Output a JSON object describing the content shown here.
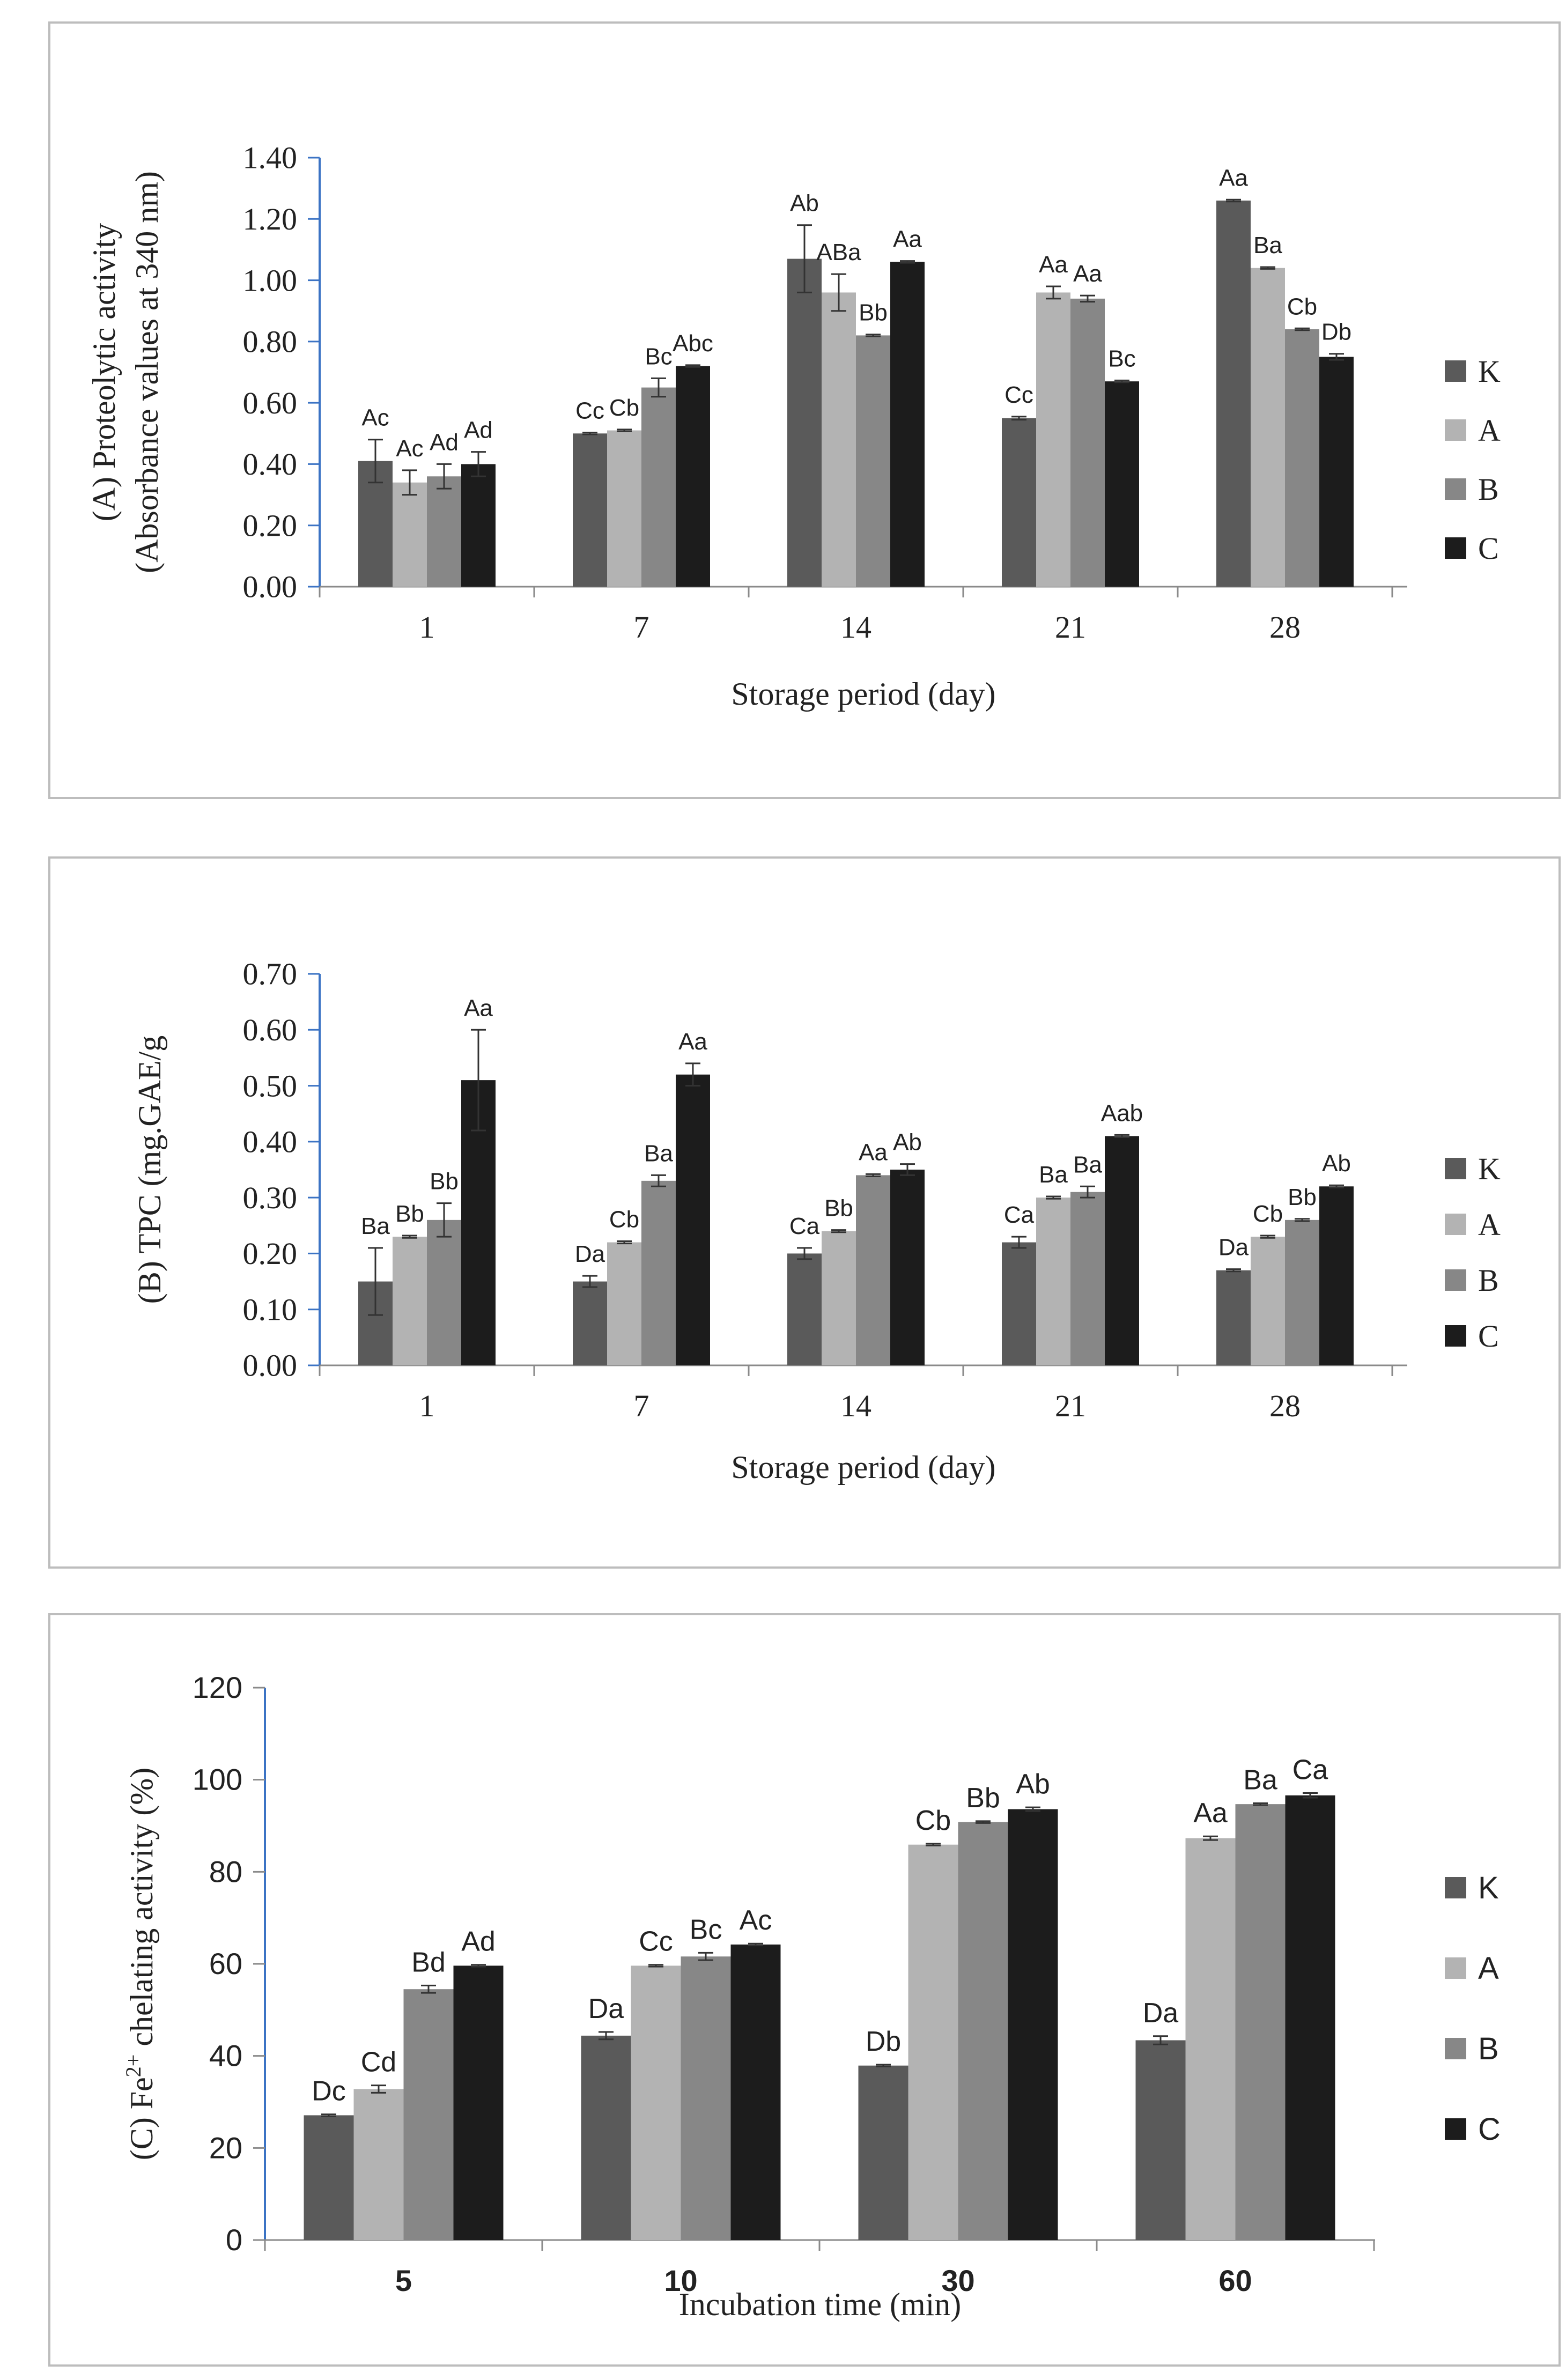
{
  "chart_data": [
    {
      "type": "bar",
      "panel": "A",
      "ylabel_line1": "(A) Proteolytic activity",
      "ylabel_line2": "(Absorbance values at 340 nm)",
      "xlabel": "Storage period (day)",
      "ylim": [
        0,
        1.4
      ],
      "yticks": [
        "0.00",
        "0.20",
        "0.40",
        "0.60",
        "0.80",
        "1.00",
        "1.20",
        "1.40"
      ],
      "categories": [
        "1",
        "7",
        "14",
        "21",
        "28"
      ],
      "legend_position": "right",
      "series": [
        {
          "name": "K",
          "color": "#5a5a5a",
          "values": [
            0.41,
            0.5,
            1.07,
            0.55,
            1.26
          ],
          "errors": [
            0.07,
            0.003,
            0.11,
            0.005,
            0.003
          ],
          "labels": [
            "Ac",
            "Cc",
            "Ab",
            "Cc",
            "Aa"
          ]
        },
        {
          "name": "A",
          "color": "#b3b3b3",
          "values": [
            0.34,
            0.51,
            0.96,
            0.96,
            1.04
          ],
          "errors": [
            0.04,
            0.003,
            0.06,
            0.02,
            0.003
          ],
          "labels": [
            "Ac",
            "Cb",
            "ABa",
            "Aa",
            "Ba"
          ]
        },
        {
          "name": "B",
          "color": "#878787",
          "values": [
            0.36,
            0.65,
            0.82,
            0.94,
            0.84
          ],
          "errors": [
            0.04,
            0.03,
            0.003,
            0.01,
            0.003
          ],
          "labels": [
            "Ad",
            "Bc",
            "Bb",
            "Aa",
            "Cb"
          ]
        },
        {
          "name": "C",
          "color": "#1c1c1c",
          "values": [
            0.4,
            0.72,
            1.06,
            0.67,
            0.75
          ],
          "errors": [
            0.04,
            0.003,
            0.003,
            0.003,
            0.01
          ],
          "labels": [
            "Ad",
            "Abc",
            "Aa",
            "Bc",
            "Db"
          ]
        }
      ]
    },
    {
      "type": "bar",
      "panel": "B",
      "ylabel_line1": "(B) TPC (mg.GAE/g",
      "ylabel_line2": "",
      "xlabel": "Storage period (day)",
      "ylim": [
        0,
        0.7
      ],
      "yticks": [
        "0.00",
        "0.10",
        "0.20",
        "0.30",
        "0.40",
        "0.50",
        "0.60",
        "0.70"
      ],
      "categories": [
        "1",
        "7",
        "14",
        "21",
        "28"
      ],
      "legend_position": "right",
      "series": [
        {
          "name": "K",
          "color": "#5a5a5a",
          "values": [
            0.15,
            0.15,
            0.2,
            0.22,
            0.17
          ],
          "errors": [
            0.06,
            0.01,
            0.01,
            0.01,
            0.002
          ],
          "labels": [
            "Ba",
            "Da",
            "Ca",
            "Ca",
            "Da"
          ]
        },
        {
          "name": "A",
          "color": "#b3b3b3",
          "values": [
            0.23,
            0.22,
            0.24,
            0.3,
            0.23
          ],
          "errors": [
            0.002,
            0.002,
            0.002,
            0.002,
            0.002
          ],
          "labels": [
            "Bb",
            "Cb",
            "Bb",
            "Ba",
            "Cb"
          ]
        },
        {
          "name": "B",
          "color": "#878787",
          "values": [
            0.26,
            0.33,
            0.34,
            0.31,
            0.26
          ],
          "errors": [
            0.03,
            0.01,
            0.002,
            0.01,
            0.002
          ],
          "labels": [
            "Bb",
            "Ba",
            "Aa",
            "Ba",
            "Bb"
          ]
        },
        {
          "name": "C",
          "color": "#1c1c1c",
          "values": [
            0.51,
            0.52,
            0.35,
            0.41,
            0.32
          ],
          "errors": [
            0.09,
            0.02,
            0.01,
            0.002,
            0.002
          ],
          "labels": [
            "Aa",
            "Aa",
            "Ab",
            "Aab",
            "Ab"
          ]
        }
      ]
    },
    {
      "type": "bar",
      "panel": "C",
      "ylabel_line1": "(C) Fe",
      "ylabel_sup": "2+",
      "ylabel_rest": " chelating activity (%)",
      "xlabel": "Incubation time (min)",
      "ylim": [
        0,
        120
      ],
      "yticks": [
        "0",
        "20",
        "40",
        "60",
        "80",
        "100",
        "120"
      ],
      "categories": [
        "5",
        "10",
        "30",
        "60"
      ],
      "legend_position": "right",
      "series": [
        {
          "name": "K",
          "color": "#5a5a5a",
          "values": [
            27.1,
            44.4,
            37.9,
            43.4
          ],
          "errors": [
            0.2,
            0.8,
            0.2,
            0.9
          ],
          "labels": [
            "Dc",
            "Da",
            "Db",
            "Da"
          ]
        },
        {
          "name": "A",
          "color": "#b3b3b3",
          "values": [
            32.8,
            59.6,
            85.9,
            87.3
          ],
          "errors": [
            0.8,
            0.2,
            0.2,
            0.4
          ],
          "labels": [
            "Cd",
            "Cc",
            "Cb",
            "Aa"
          ]
        },
        {
          "name": "B",
          "color": "#878787",
          "values": [
            54.5,
            61.6,
            90.8,
            94.7
          ],
          "errors": [
            0.8,
            0.8,
            0.2,
            0.2
          ],
          "labels": [
            "Bd",
            "Bc",
            "Bb",
            "Ba"
          ]
        },
        {
          "name": "C",
          "color": "#1c1c1c",
          "values": [
            59.6,
            64.2,
            93.6,
            96.6
          ],
          "errors": [
            0.2,
            0.2,
            0.4,
            0.5
          ],
          "labels": [
            "Ad",
            "Ac",
            "Ab",
            "Ca"
          ]
        }
      ]
    }
  ]
}
